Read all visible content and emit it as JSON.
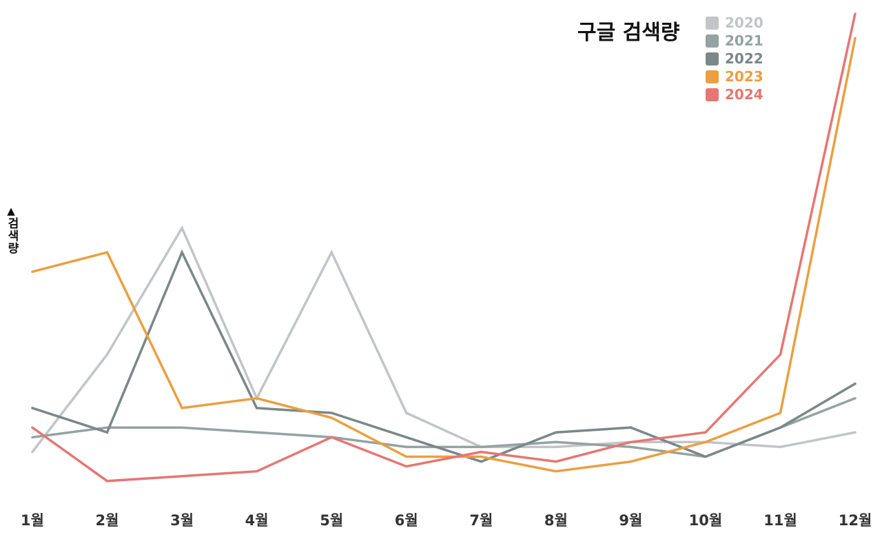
{
  "chart_data": {
    "type": "line",
    "title": "구글 검색량",
    "xlabel": "",
    "ylabel": "검색량",
    "ylabel_arrow": "▲",
    "categories": [
      "1월",
      "2월",
      "3월",
      "4월",
      "5월",
      "6월",
      "7월",
      "8월",
      "9월",
      "10월",
      "11월",
      "12월"
    ],
    "ylim": [
      0,
      100
    ],
    "grid": false,
    "legend_position": "top-right",
    "series": [
      {
        "name": "2020",
        "color": "#c1c5c7",
        "values": [
          9,
          29,
          55,
          20,
          50,
          17,
          10,
          10,
          11,
          11,
          10,
          13
        ]
      },
      {
        "name": "2021",
        "color": "#94a3a1",
        "values": [
          12,
          14,
          14,
          13,
          12,
          10,
          10,
          11,
          10,
          8,
          14,
          20
        ]
      },
      {
        "name": "2022",
        "color": "#7b8788",
        "values": [
          18,
          13,
          50,
          18,
          17,
          12,
          7,
          13,
          14,
          8,
          14,
          23
        ]
      },
      {
        "name": "2023",
        "color": "#eb9f40",
        "values": [
          46,
          50,
          18,
          20,
          16,
          8,
          8,
          5,
          7,
          11,
          17,
          94
        ]
      },
      {
        "name": "2024",
        "color": "#e67672",
        "values": [
          14,
          3,
          4,
          5,
          12,
          6,
          9,
          7,
          11,
          13,
          29,
          99
        ]
      }
    ]
  }
}
